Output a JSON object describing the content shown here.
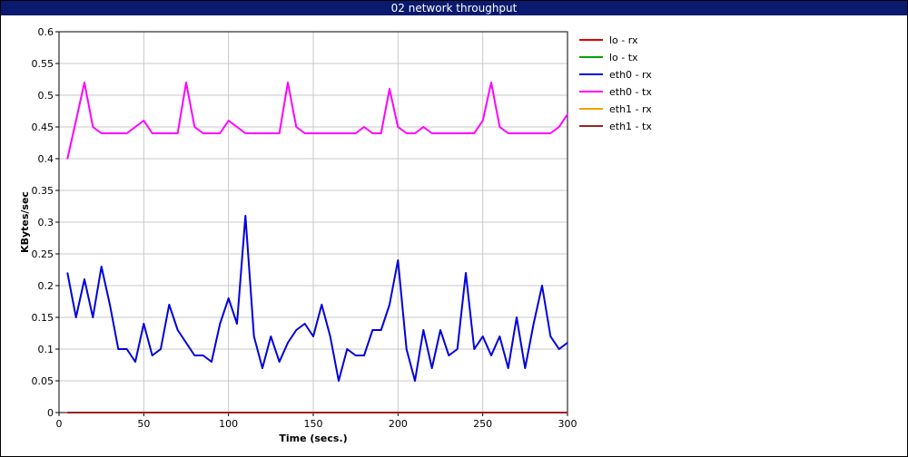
{
  "window": {
    "title": "02 network throughput"
  },
  "chart_data": {
    "type": "line",
    "title": "02 network throughput",
    "xlabel": "Time (secs.)",
    "ylabel": "KBytes/sec",
    "xlim": [
      0,
      300
    ],
    "ylim": [
      0,
      0.6
    ],
    "xticks": [
      "0",
      "50",
      "100",
      "150",
      "200",
      "250",
      "300"
    ],
    "yticks": [
      "0",
      "0.05",
      "0.1",
      "0.15",
      "0.2",
      "0.25",
      "0.3",
      "0.35",
      "0.4",
      "0.45",
      "0.5",
      "0.55",
      "0.6"
    ],
    "grid": true,
    "legend_position": "right",
    "x": [
      5,
      10,
      15,
      20,
      25,
      30,
      35,
      40,
      45,
      50,
      55,
      60,
      65,
      70,
      75,
      80,
      85,
      90,
      95,
      100,
      105,
      110,
      115,
      120,
      125,
      130,
      135,
      140,
      145,
      150,
      155,
      160,
      165,
      170,
      175,
      180,
      185,
      190,
      195,
      200,
      205,
      210,
      215,
      220,
      225,
      230,
      235,
      240,
      245,
      250,
      255,
      260,
      265,
      270,
      275,
      280,
      285,
      290,
      295,
      300
    ],
    "series": [
      {
        "name": "lo - rx",
        "color": "#e00000",
        "values": [
          0,
          0,
          0,
          0,
          0,
          0,
          0,
          0,
          0,
          0,
          0,
          0,
          0,
          0,
          0,
          0,
          0,
          0,
          0,
          0,
          0,
          0,
          0,
          0,
          0,
          0,
          0,
          0,
          0,
          0,
          0,
          0,
          0,
          0,
          0,
          0,
          0,
          0,
          0,
          0,
          0,
          0,
          0,
          0,
          0,
          0,
          0,
          0,
          0,
          0,
          0,
          0,
          0,
          0,
          0,
          0,
          0,
          0,
          0,
          0
        ]
      },
      {
        "name": "lo - tx",
        "color": "#00a000",
        "values": [
          0,
          0,
          0,
          0,
          0,
          0,
          0,
          0,
          0,
          0,
          0,
          0,
          0,
          0,
          0,
          0,
          0,
          0,
          0,
          0,
          0,
          0,
          0,
          0,
          0,
          0,
          0,
          0,
          0,
          0,
          0,
          0,
          0,
          0,
          0,
          0,
          0,
          0,
          0,
          0,
          0,
          0,
          0,
          0,
          0,
          0,
          0,
          0,
          0,
          0,
          0,
          0,
          0,
          0,
          0,
          0,
          0,
          0,
          0,
          0
        ]
      },
      {
        "name": "eth0 - rx",
        "color": "#0000dd",
        "values": [
          0.22,
          0.15,
          0.21,
          0.15,
          0.23,
          0.17,
          0.1,
          0.1,
          0.08,
          0.14,
          0.09,
          0.1,
          0.17,
          0.13,
          0.11,
          0.09,
          0.09,
          0.08,
          0.14,
          0.18,
          0.14,
          0.31,
          0.12,
          0.07,
          0.12,
          0.08,
          0.11,
          0.13,
          0.14,
          0.12,
          0.17,
          0.12,
          0.05,
          0.1,
          0.09,
          0.09,
          0.13,
          0.13,
          0.17,
          0.24,
          0.1,
          0.05,
          0.13,
          0.07,
          0.13,
          0.09,
          0.1,
          0.22,
          0.1,
          0.12,
          0.09,
          0.12,
          0.07,
          0.15,
          0.07,
          0.14,
          0.2,
          0.12,
          0.1,
          0.11
        ]
      },
      {
        "name": "eth0 - tx",
        "color": "#ff00ff",
        "values": [
          0.4,
          0.46,
          0.52,
          0.45,
          0.44,
          0.44,
          0.44,
          0.44,
          0.45,
          0.46,
          0.44,
          0.44,
          0.44,
          0.44,
          0.52,
          0.45,
          0.44,
          0.44,
          0.44,
          0.46,
          0.45,
          0.44,
          0.44,
          0.44,
          0.44,
          0.44,
          0.52,
          0.45,
          0.44,
          0.44,
          0.44,
          0.44,
          0.44,
          0.44,
          0.44,
          0.45,
          0.44,
          0.44,
          0.51,
          0.45,
          0.44,
          0.44,
          0.45,
          0.44,
          0.44,
          0.44,
          0.44,
          0.44,
          0.44,
          0.46,
          0.52,
          0.45,
          0.44,
          0.44,
          0.44,
          0.44,
          0.44,
          0.44,
          0.45,
          0.47
        ]
      },
      {
        "name": "eth1 - rx",
        "color": "#f0a000",
        "values": [
          0,
          0,
          0,
          0,
          0,
          0,
          0,
          0,
          0,
          0,
          0,
          0,
          0,
          0,
          0,
          0,
          0,
          0,
          0,
          0,
          0,
          0,
          0,
          0,
          0,
          0,
          0,
          0,
          0,
          0,
          0,
          0,
          0,
          0,
          0,
          0,
          0,
          0,
          0,
          0,
          0,
          0,
          0,
          0,
          0,
          0,
          0,
          0,
          0,
          0,
          0,
          0,
          0,
          0,
          0,
          0,
          0,
          0,
          0,
          0
        ]
      },
      {
        "name": "eth1 - tx",
        "color": "#a02020",
        "values": [
          0,
          0,
          0,
          0,
          0,
          0,
          0,
          0,
          0,
          0,
          0,
          0,
          0,
          0,
          0,
          0,
          0,
          0,
          0,
          0,
          0,
          0,
          0,
          0,
          0,
          0,
          0,
          0,
          0,
          0,
          0,
          0,
          0,
          0,
          0,
          0,
          0,
          0,
          0,
          0,
          0,
          0,
          0,
          0,
          0,
          0,
          0,
          0,
          0,
          0,
          0,
          0,
          0,
          0,
          0,
          0,
          0,
          0,
          0,
          0
        ]
      }
    ]
  }
}
